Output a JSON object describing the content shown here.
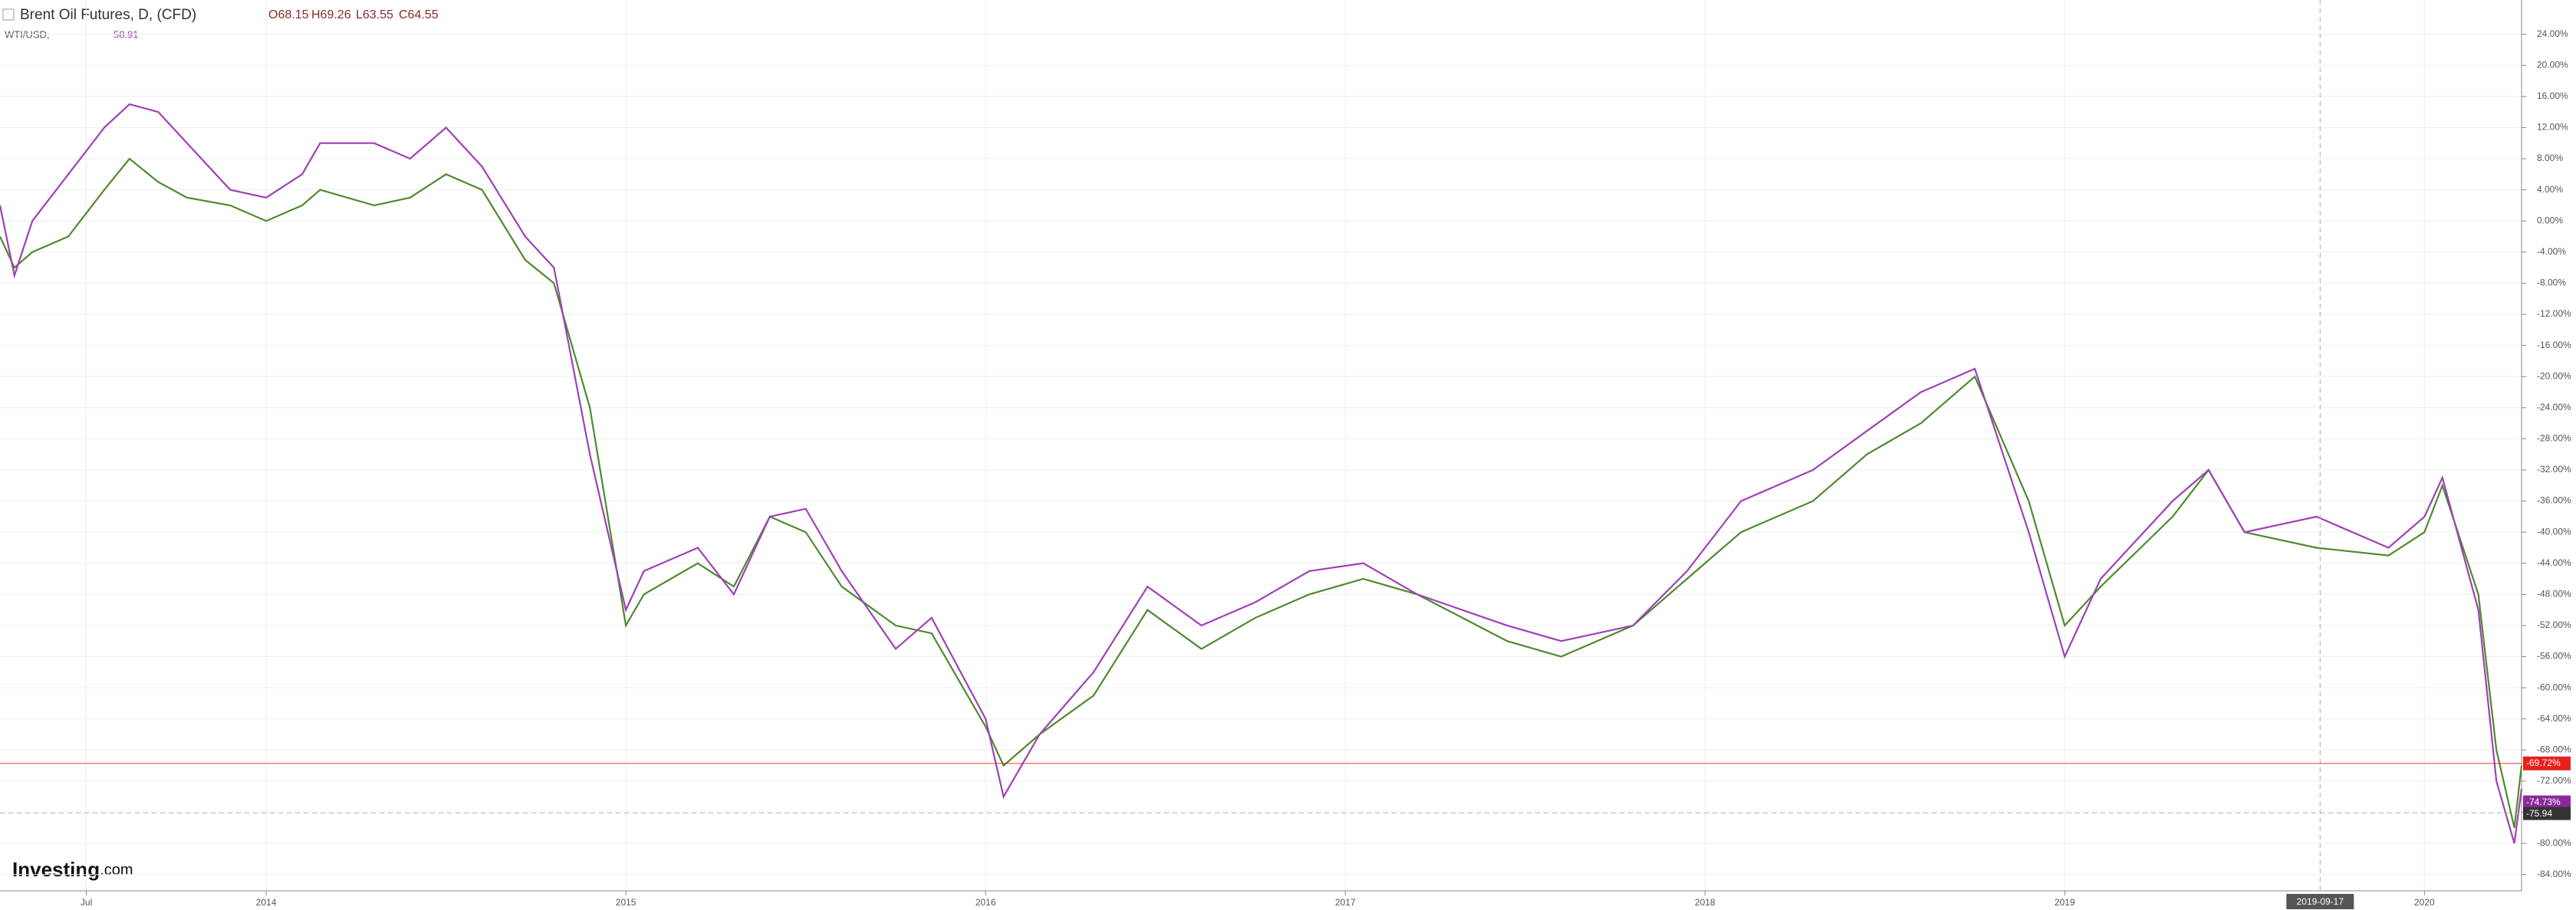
{
  "chart_data": {
    "type": "line",
    "title": "Brent Oil Futures, D, (CFD)",
    "ohlc": [
      "O68.15",
      "H69.26",
      "L63.55",
      "C64.55"
    ],
    "compare_label": "WTI/USD, ",
    "compare_value": "58.91",
    "logo": "Investing",
    "logo_suffix": ".com",
    "xlim": [
      2013.26,
      2020.27
    ],
    "xticks": [
      {
        "value": 2013.5,
        "label": "Jul"
      },
      2014,
      2015,
      2016,
      2017,
      2018,
      2019,
      2020
    ],
    "ylim": [
      -86.1,
      28.4
    ],
    "yticks": [
      {
        "value": 24,
        "label": "24.00%"
      },
      {
        "value": 20,
        "label": "20.00%"
      },
      {
        "value": 16,
        "label": "16.00%"
      },
      {
        "value": 12,
        "label": "12.00%"
      },
      {
        "value": 8,
        "label": "8.00%"
      },
      {
        "value": 4,
        "label": "4.00%"
      },
      {
        "value": 0,
        "label": "0.00%"
      },
      {
        "value": -4,
        "label": "-4.00%"
      },
      {
        "value": -8,
        "label": "-8.00%"
      },
      {
        "value": -12,
        "label": "-12.00%"
      },
      {
        "value": -16,
        "label": "-16.00%"
      },
      {
        "value": -20,
        "label": "-20.00%"
      },
      {
        "value": -24,
        "label": "-24.00%"
      },
      {
        "value": -28,
        "label": "-28.00%"
      },
      {
        "value": -32,
        "label": "-32.00%"
      },
      {
        "value": -36,
        "label": "-36.00%"
      },
      {
        "value": -40,
        "label": "-40.00%"
      },
      {
        "value": -44,
        "label": "-44.00%"
      },
      {
        "value": -48,
        "label": "-48.00%"
      },
      {
        "value": -52,
        "label": "-52.00%"
      },
      {
        "value": -56,
        "label": "-56.00%"
      },
      {
        "value": -60,
        "label": "-60.00%"
      },
      {
        "value": -64,
        "label": "-64.00%"
      },
      {
        "value": -68,
        "label": "-68.00%"
      },
      {
        "value": -72,
        "label": "-72.00%"
      },
      {
        "value": -76,
        "label": "-76.00%"
      },
      {
        "value": -80,
        "label": "-80.00%"
      },
      {
        "value": -84,
        "label": "-84.00%"
      }
    ],
    "grid": true,
    "x": [
      2013.26,
      2013.3,
      2013.35,
      2013.45,
      2013.55,
      2013.62,
      2013.7,
      2013.78,
      2013.9,
      2014.0,
      2014.1,
      2014.15,
      2014.3,
      2014.4,
      2014.5,
      2014.6,
      2014.72,
      2014.8,
      2014.9,
      2015.0,
      2015.05,
      2015.2,
      2015.3,
      2015.4,
      2015.5,
      2015.6,
      2015.75,
      2015.85,
      2016.0,
      2016.05,
      2016.15,
      2016.3,
      2016.45,
      2016.6,
      2016.75,
      2016.9,
      2017.05,
      2017.2,
      2017.45,
      2017.6,
      2017.8,
      2017.95,
      2018.1,
      2018.3,
      2018.45,
      2018.6,
      2018.75,
      2018.9,
      2019.0,
      2019.1,
      2019.3,
      2019.4,
      2019.5,
      2019.7,
      2019.9,
      2020.0,
      2020.05,
      2020.15,
      2020.2,
      2020.25,
      2020.27
    ],
    "series": [
      {
        "color": "#4e8a2e",
        "values": [
          -2,
          -6,
          -4,
          -2,
          4,
          8,
          5,
          3,
          2,
          0,
          2,
          4,
          2,
          3,
          6,
          4,
          -5,
          -8,
          -24,
          -52,
          -48,
          -44,
          -47,
          -38,
          -40,
          -47,
          -52,
          -53,
          -65,
          -70,
          -66,
          -61,
          -50,
          -55,
          -51,
          -48,
          -46,
          -48,
          -54,
          -56,
          -52,
          -46,
          -40,
          -36,
          -30,
          -26,
          -20,
          -36,
          -52,
          -47,
          -38,
          -32,
          -40,
          -42,
          -43,
          -40,
          -34,
          -48,
          -68,
          -78,
          -70
        ]
      },
      {
        "color": "#a040b8",
        "values": [
          2,
          -7,
          0,
          6,
          12,
          15,
          14,
          10,
          4,
          3,
          6,
          10,
          10,
          8,
          12,
          7,
          -2,
          -6,
          -30,
          -50,
          -45,
          -42,
          -48,
          -38,
          -37,
          -45,
          -55,
          -51,
          -64,
          -74,
          -66,
          -58,
          -47,
          -52,
          -49,
          -45,
          -44,
          -48,
          -52,
          -54,
          -52,
          -45,
          -36,
          -32,
          -27,
          -22,
          -19,
          -40,
          -56,
          -46,
          -36,
          -32,
          -40,
          -38,
          -42,
          -38,
          -33,
          -50,
          -72,
          -80,
          -73
        ]
      }
    ],
    "last_labels": [
      {
        "value": -69.72,
        "label": "-69.72%",
        "color": "#e8201c"
      },
      {
        "value": -74.73,
        "label": "-74.73%",
        "color": "#8a2a9a"
      }
    ],
    "price_label": "-75.94",
    "crosshair": {
      "x": 2019.71,
      "label": "2019-09-17"
    }
  }
}
